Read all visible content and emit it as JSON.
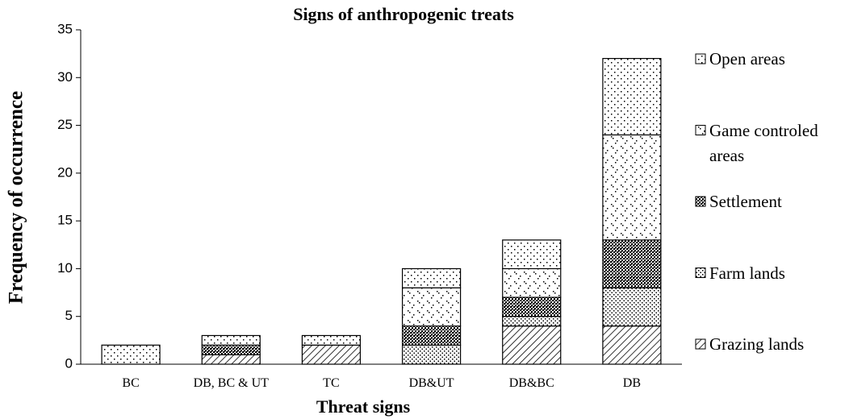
{
  "chart_data": {
    "type": "stacked_bar",
    "title": "Signs of anthropogenic treats",
    "x_label": "Threat signs",
    "y_label": "Frequency of occurrence",
    "categories": [
      "BC",
      "DB, BC & UT",
      "TC",
      "DB&UT",
      "DB&BC",
      "DB"
    ],
    "series": [
      {
        "name": "Grazing lands",
        "color": "#000000",
        "pattern": "diagonal",
        "values": [
          0,
          1,
          2,
          0,
          4,
          4
        ]
      },
      {
        "name": "Farm lands",
        "color": "#000000",
        "pattern": "crossdots",
        "values": [
          0,
          0,
          0,
          2,
          1,
          4
        ]
      },
      {
        "name": "Settlement",
        "color": "#000000",
        "pattern": "crosshatch",
        "values": [
          0,
          1,
          0,
          2,
          2,
          5
        ]
      },
      {
        "name": "Game controled areas",
        "color": "#000000",
        "pattern": "sparse",
        "values": [
          0,
          0,
          0,
          4,
          3,
          11
        ]
      },
      {
        "name": "Open areas",
        "color": "#000000",
        "pattern": "dots",
        "values": [
          2,
          1,
          1,
          2,
          3,
          8
        ]
      }
    ],
    "ylim": [
      0,
      35
    ],
    "yticks": [
      0,
      5,
      10,
      15,
      20,
      25,
      30,
      35
    ],
    "grid": false,
    "legend": "right"
  }
}
